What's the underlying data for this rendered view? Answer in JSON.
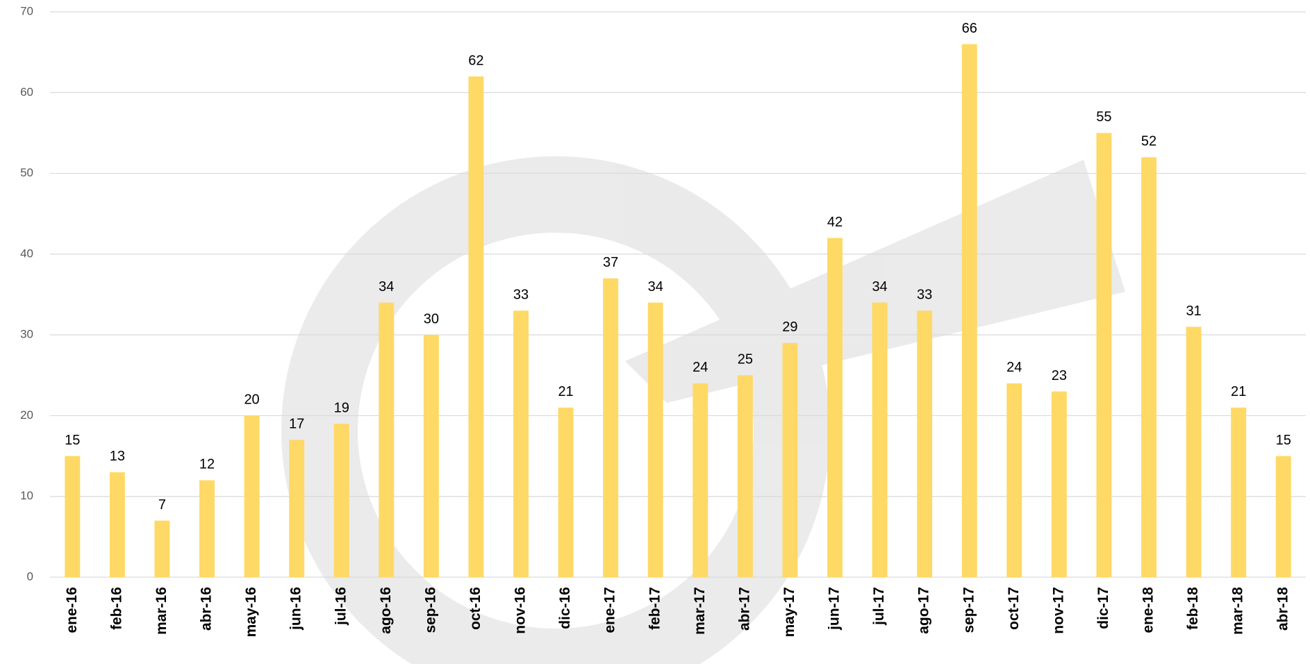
{
  "chart_data": {
    "type": "bar",
    "categories": [
      "ene-16",
      "feb-16",
      "mar-16",
      "abr-16",
      "may-16",
      "jun-16",
      "jul-16",
      "ago-16",
      "sep-16",
      "oct-16",
      "nov-16",
      "dic-16",
      "ene-17",
      "feb-17",
      "mar-17",
      "abr-17",
      "may-17",
      "jun-17",
      "jul-17",
      "ago-17",
      "sep-17",
      "oct-17",
      "nov-17",
      "dic-17",
      "ene-18",
      "feb-18",
      "mar-18",
      "abr-18"
    ],
    "values": [
      15,
      13,
      7,
      12,
      20,
      17,
      19,
      34,
      30,
      62,
      33,
      21,
      37,
      34,
      24,
      25,
      29,
      42,
      34,
      33,
      66,
      24,
      23,
      55,
      52,
      31,
      21,
      15
    ],
    "color": "#ffd966",
    "ylim": [
      0,
      70
    ],
    "yticks": [
      0,
      10,
      20,
      30,
      40,
      50,
      60,
      70
    ],
    "grid": true
  }
}
